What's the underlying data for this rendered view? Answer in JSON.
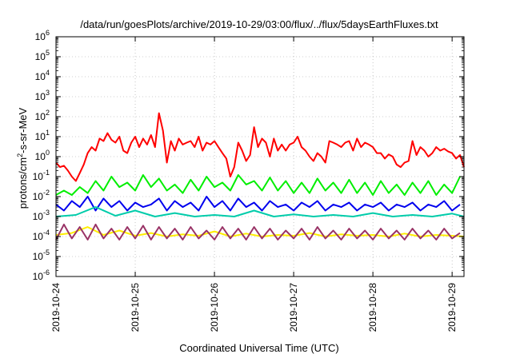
{
  "chart_data": {
    "type": "line",
    "title": "/data/run/goesPlots/archive/2019-10-29/03:00/flux/../flux/5daysEarthFluxes.txt",
    "xlabel": "Coordinated Universal Time (UTC)",
    "ylabel_base": "protons/cm",
    "ylabel_sup": "2",
    "ylabel_tail": "-s-sr-MeV",
    "yscale": "log",
    "ylim": [
      1e-06,
      1000000
    ],
    "yticks": [
      {
        "base": "10",
        "exp": "-6",
        "value": 1e-06
      },
      {
        "base": "10",
        "exp": "-5",
        "value": 1e-05
      },
      {
        "base": "10",
        "exp": "-4",
        "value": 0.0001
      },
      {
        "base": "10",
        "exp": "-3",
        "value": 0.001
      },
      {
        "base": "10",
        "exp": "-2",
        "value": 0.01
      },
      {
        "base": "10",
        "exp": "-1",
        "value": 0.1
      },
      {
        "base": "10",
        "exp": "0",
        "value": 1
      },
      {
        "base": "10",
        "exp": "1",
        "value": 10
      },
      {
        "base": "10",
        "exp": "2",
        "value": 100
      },
      {
        "base": "10",
        "exp": "3",
        "value": 1000
      },
      {
        "base": "10",
        "exp": "4",
        "value": 10000
      },
      {
        "base": "10",
        "exp": "5",
        "value": 100000
      },
      {
        "base": "10",
        "exp": "6",
        "value": 1000000
      }
    ],
    "xlim": [
      0,
      5.15
    ],
    "xticks": [
      {
        "label": "2019-10-24",
        "value": 0
      },
      {
        "label": "2019-10-25",
        "value": 1
      },
      {
        "label": "2019-10-26",
        "value": 2
      },
      {
        "label": "2019-10-27",
        "value": 3
      },
      {
        "label": "2019-10-28",
        "value": 4
      },
      {
        "label": "2019-10-29",
        "value": 5
      }
    ],
    "grid": true,
    "legend": "none",
    "series": [
      {
        "color": "#ff0000",
        "x": [
          0,
          0.05,
          0.1,
          0.15,
          0.2,
          0.25,
          0.3,
          0.35,
          0.4,
          0.45,
          0.5,
          0.55,
          0.6,
          0.65,
          0.7,
          0.75,
          0.8,
          0.85,
          0.9,
          0.95,
          1.0,
          1.05,
          1.1,
          1.15,
          1.2,
          1.25,
          1.3,
          1.35,
          1.4,
          1.45,
          1.5,
          1.55,
          1.6,
          1.65,
          1.7,
          1.75,
          1.8,
          1.85,
          1.9,
          1.95,
          2.0,
          2.05,
          2.1,
          2.15,
          2.2,
          2.25,
          2.3,
          2.35,
          2.4,
          2.45,
          2.5,
          2.55,
          2.6,
          2.65,
          2.7,
          2.75,
          2.8,
          2.85,
          2.9,
          2.95,
          3.0,
          3.05,
          3.1,
          3.15,
          3.2,
          3.25,
          3.3,
          3.35,
          3.4,
          3.45,
          3.5,
          3.55,
          3.6,
          3.65,
          3.7,
          3.75,
          3.8,
          3.85,
          3.9,
          3.95,
          4.0,
          4.05,
          4.1,
          4.15,
          4.2,
          4.25,
          4.3,
          4.35,
          4.4,
          4.45,
          4.5,
          4.55,
          4.6,
          4.65,
          4.7,
          4.75,
          4.8,
          4.85,
          4.9,
          4.95,
          5.0,
          5.05,
          5.1,
          5.15
        ],
        "y": [
          0.5,
          0.3,
          0.35,
          0.2,
          0.1,
          0.06,
          0.15,
          0.4,
          1.5,
          3,
          2,
          8,
          6,
          15,
          7,
          5,
          10,
          2,
          1.5,
          5,
          10,
          3,
          8,
          4,
          12,
          3,
          150,
          20,
          0.5,
          6,
          2,
          8,
          4,
          5,
          6,
          3,
          10,
          2,
          5,
          4,
          6,
          3,
          1.5,
          0.8,
          0.1,
          0.3,
          5,
          2,
          0.6,
          1.2,
          30,
          3,
          8,
          5,
          1,
          8,
          2,
          4,
          2,
          4,
          5,
          10,
          3,
          2,
          1,
          0.6,
          1.5,
          1,
          0.5,
          6,
          5,
          4,
          3,
          5,
          6,
          2,
          8,
          3,
          5,
          4,
          3,
          1.5,
          1.5,
          0.8,
          1.3,
          1,
          0.4,
          0.3,
          0.5,
          0.6,
          6,
          1.2,
          3,
          2,
          1,
          1.5,
          3,
          2,
          2.5,
          1.8,
          1.5,
          0.8,
          1.2,
          0.3
        ]
      },
      {
        "color": "#00ee00",
        "x": [
          0,
          0.1,
          0.2,
          0.3,
          0.4,
          0.5,
          0.6,
          0.7,
          0.8,
          0.9,
          1.0,
          1.1,
          1.2,
          1.3,
          1.4,
          1.5,
          1.6,
          1.7,
          1.8,
          1.9,
          2.0,
          2.1,
          2.2,
          2.3,
          2.4,
          2.5,
          2.6,
          2.7,
          2.8,
          2.9,
          3.0,
          3.1,
          3.2,
          3.3,
          3.4,
          3.5,
          3.6,
          3.7,
          3.8,
          3.9,
          4.0,
          4.1,
          4.2,
          4.3,
          4.4,
          4.5,
          4.6,
          4.7,
          4.8,
          4.9,
          5.0,
          5.1
        ],
        "y": [
          0.012,
          0.02,
          0.012,
          0.03,
          0.015,
          0.06,
          0.02,
          0.1,
          0.03,
          0.05,
          0.02,
          0.12,
          0.03,
          0.08,
          0.02,
          0.04,
          0.015,
          0.07,
          0.02,
          0.1,
          0.03,
          0.05,
          0.02,
          0.12,
          0.04,
          0.06,
          0.02,
          0.09,
          0.02,
          0.06,
          0.015,
          0.05,
          0.015,
          0.08,
          0.02,
          0.05,
          0.015,
          0.07,
          0.015,
          0.05,
          0.012,
          0.06,
          0.015,
          0.04,
          0.012,
          0.05,
          0.015,
          0.06,
          0.012,
          0.04,
          0.015,
          0.1
        ]
      },
      {
        "color": "#0000ee",
        "x": [
          0,
          0.1,
          0.2,
          0.3,
          0.4,
          0.5,
          0.6,
          0.7,
          0.8,
          0.9,
          1.0,
          1.1,
          1.2,
          1.3,
          1.4,
          1.5,
          1.6,
          1.7,
          1.8,
          1.9,
          2.0,
          2.1,
          2.2,
          2.3,
          2.4,
          2.5,
          2.6,
          2.7,
          2.8,
          2.9,
          3.0,
          3.1,
          3.2,
          3.3,
          3.4,
          3.5,
          3.6,
          3.7,
          3.8,
          3.9,
          4.0,
          4.1,
          4.2,
          4.3,
          4.4,
          4.5,
          4.6,
          4.7,
          4.8,
          4.9,
          5.0,
          5.1
        ],
        "y": [
          0.004,
          0.002,
          0.006,
          0.003,
          0.01,
          0.002,
          0.008,
          0.003,
          0.006,
          0.002,
          0.005,
          0.003,
          0.004,
          0.008,
          0.002,
          0.006,
          0.003,
          0.005,
          0.002,
          0.01,
          0.003,
          0.006,
          0.002,
          0.008,
          0.003,
          0.005,
          0.002,
          0.006,
          0.003,
          0.004,
          0.002,
          0.005,
          0.003,
          0.006,
          0.002,
          0.004,
          0.003,
          0.005,
          0.002,
          0.004,
          0.003,
          0.005,
          0.002,
          0.004,
          0.003,
          0.005,
          0.002,
          0.004,
          0.003,
          0.006,
          0.002,
          0.004
        ]
      },
      {
        "color": "#00ccaa",
        "x": [
          0,
          0.25,
          0.5,
          0.75,
          1.0,
          1.25,
          1.5,
          1.75,
          2.0,
          2.25,
          2.5,
          2.75,
          3.0,
          3.25,
          3.5,
          3.75,
          4.0,
          4.25,
          4.5,
          4.75,
          5.0,
          5.15
        ],
        "y": [
          0.001,
          0.0012,
          0.003,
          0.0011,
          0.002,
          0.001,
          0.0015,
          0.001,
          0.0012,
          0.001,
          0.002,
          0.001,
          0.0013,
          0.001,
          0.0012,
          0.001,
          0.0015,
          0.001,
          0.0012,
          0.001,
          0.0014,
          0.001
        ]
      },
      {
        "color": "#ffee00",
        "x": [
          0,
          0.2,
          0.4,
          0.6,
          0.8,
          1.0,
          1.2,
          1.4,
          1.6,
          1.8,
          2.0,
          2.2,
          2.4,
          2.6,
          2.8,
          3.0,
          3.2,
          3.4,
          3.6,
          3.8,
          4.0,
          4.2,
          4.4,
          4.6,
          4.8,
          5.0,
          5.15
        ],
        "y": [
          0.00012,
          0.00015,
          0.0003,
          0.00012,
          0.0002,
          0.00011,
          0.00015,
          0.0001,
          0.00013,
          0.00011,
          0.00018,
          0.0001,
          0.00014,
          0.0001,
          0.00012,
          0.00011,
          0.00015,
          0.0001,
          0.00013,
          0.00011,
          0.00012,
          0.0001,
          0.00014,
          0.0001,
          0.00012,
          0.00011,
          0.0001
        ]
      },
      {
        "color": "#993366",
        "x": [
          0,
          0.1,
          0.2,
          0.3,
          0.4,
          0.5,
          0.6,
          0.7,
          0.8,
          0.9,
          1.0,
          1.1,
          1.2,
          1.3,
          1.4,
          1.5,
          1.6,
          1.7,
          1.8,
          1.9,
          2.0,
          2.1,
          2.2,
          2.3,
          2.4,
          2.5,
          2.6,
          2.7,
          2.8,
          2.9,
          3.0,
          3.1,
          3.2,
          3.3,
          3.4,
          3.5,
          3.6,
          3.7,
          3.8,
          3.9,
          4.0,
          4.1,
          4.2,
          4.3,
          4.4,
          4.5,
          4.6,
          4.7,
          4.8,
          4.9,
          5.0,
          5.1
        ],
        "y": [
          7e-05,
          0.0004,
          8e-05,
          0.0003,
          7e-05,
          0.0004,
          8e-05,
          0.00025,
          7e-05,
          0.0003,
          8e-05,
          0.00035,
          7e-05,
          0.0003,
          8e-05,
          0.00025,
          7e-05,
          0.0003,
          8e-05,
          0.0002,
          7e-05,
          0.0003,
          8e-05,
          0.00025,
          7e-05,
          0.0003,
          8e-05,
          0.00025,
          7e-05,
          0.0002,
          8e-05,
          0.00025,
          7e-05,
          0.0003,
          8e-05,
          0.0002,
          7e-05,
          0.00025,
          8e-05,
          0.0002,
          7e-05,
          0.00025,
          8e-05,
          0.0002,
          7e-05,
          0.00025,
          8e-05,
          0.0002,
          7e-05,
          0.00025,
          8e-05,
          0.00015
        ]
      }
    ]
  }
}
